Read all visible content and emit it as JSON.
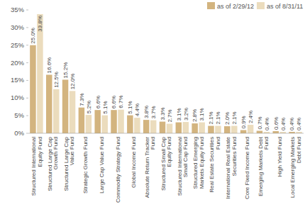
{
  "chart_data": {
    "type": "bar",
    "categories": [
      "Structured International Equity Fund",
      "Structured Large Cap Growth Fund",
      "Structured Large Cap Value Fund",
      "Strategic Growth Fund",
      "Large Cap Value Fund",
      "Commodity Strategy Fund",
      "Global Income Fund",
      "Absolute Return Tracker Fund",
      "Structured Small Cap Equity Fund",
      "Structured International Small Cap Fund",
      "Structured Emerging Markets Equity Fund",
      "Real Estate Securities Fund",
      "International Real Estate Securities Fund",
      "Core Fixed Income Fund",
      "Emerging Markets Debt Fund",
      "High Yield Fund",
      "Local Emerging Markets Debt Fund"
    ],
    "series": [
      {
        "name": "as of 2/29/12",
        "color": "#d3b47f",
        "values": [
          25.0,
          16.6,
          15.2,
          7.3,
          6.6,
          6.6,
          5.1,
          3.8,
          3.3,
          3.1,
          2.8,
          2.1,
          2.0,
          0.9,
          0.7,
          0.6,
          0.4
        ],
        "value_labels": [
          "25.0%",
          "16.6%",
          "15.2%",
          "7.3%",
          "6.6%",
          "6.6%",
          "5.1%",
          "3.8%",
          "3.3%",
          "3.1%",
          "2.8%",
          "2.1%",
          "2.0%",
          "0.9%",
          "0.7%",
          "0.6%",
          "0.4%"
        ]
      },
      {
        "name": "as of 8/31/11",
        "color": "#ebdcbd",
        "values": [
          33.8,
          12.5,
          12.0,
          5.2,
          5.1,
          6.7,
          4.4,
          3.7,
          2.7,
          3.2,
          3.1,
          2.1,
          2.1,
          2.4,
          0.4,
          0.4,
          0.4
        ],
        "value_labels": [
          "33.8%",
          "12.5%",
          "12.0%",
          "5.2%",
          "5.1%",
          "6.7%",
          "4.4%",
          "3.7%",
          "2.7%",
          "3.2%",
          "3.1%",
          "2.1%",
          "2.1%",
          "2.4%",
          "0.4%",
          "0.4%",
          "0.4%"
        ]
      }
    ],
    "ylim": [
      0,
      35
    ],
    "yticks": [
      {
        "value": 0,
        "label": "0%"
      },
      {
        "value": 5,
        "label": "5%"
      },
      {
        "value": 10,
        "label": "10%"
      },
      {
        "value": 15,
        "label": "15%"
      },
      {
        "value": 20,
        "label": "20%"
      },
      {
        "value": 25,
        "label": "25%"
      },
      {
        "value": 30,
        "label": "30%"
      },
      {
        "value": 35,
        "label": "35%"
      }
    ],
    "grid": false,
    "legend": "top-right",
    "data_labels": true
  }
}
